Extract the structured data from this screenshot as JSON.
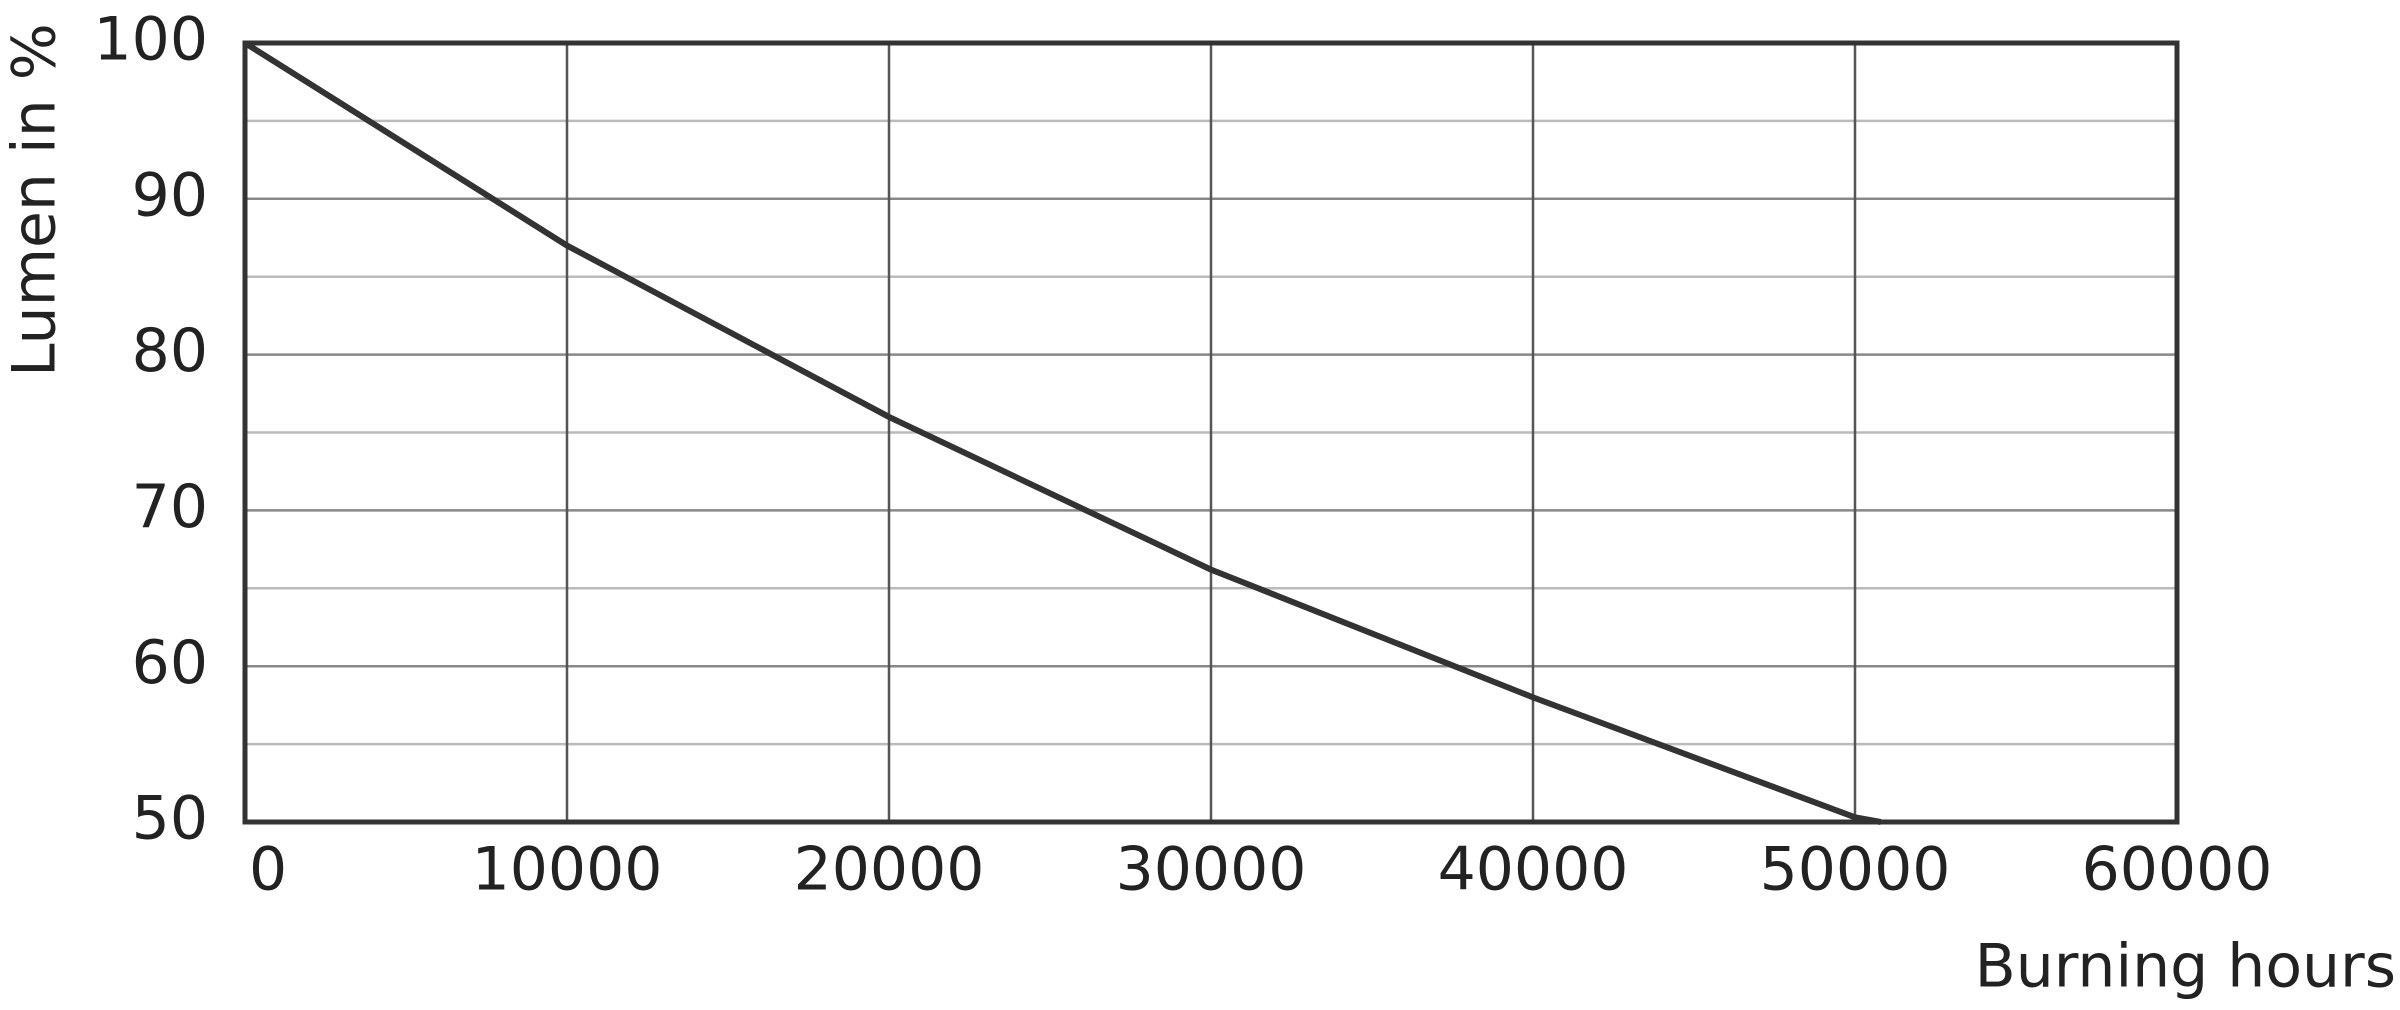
{
  "chart_data": {
    "type": "line",
    "x_label": "Burning hours",
    "y_label": "Lumen in %",
    "x": [
      0,
      10000,
      20000,
      30000,
      40000,
      50000,
      50800
    ],
    "series": [
      {
        "color": "#333333",
        "values": [
          100,
          87,
          76,
          66.2,
          58,
          50.3,
          50
        ]
      }
    ],
    "xlim": [
      0,
      60000
    ],
    "xticks": [
      0,
      10000,
      20000,
      30000,
      40000,
      50000,
      60000
    ],
    "ylim": [
      50,
      100
    ],
    "yticks": [
      50,
      60,
      70,
      80,
      90,
      100
    ],
    "minor_yticks": [
      55,
      65,
      75,
      85,
      95
    ],
    "grid": true
  }
}
